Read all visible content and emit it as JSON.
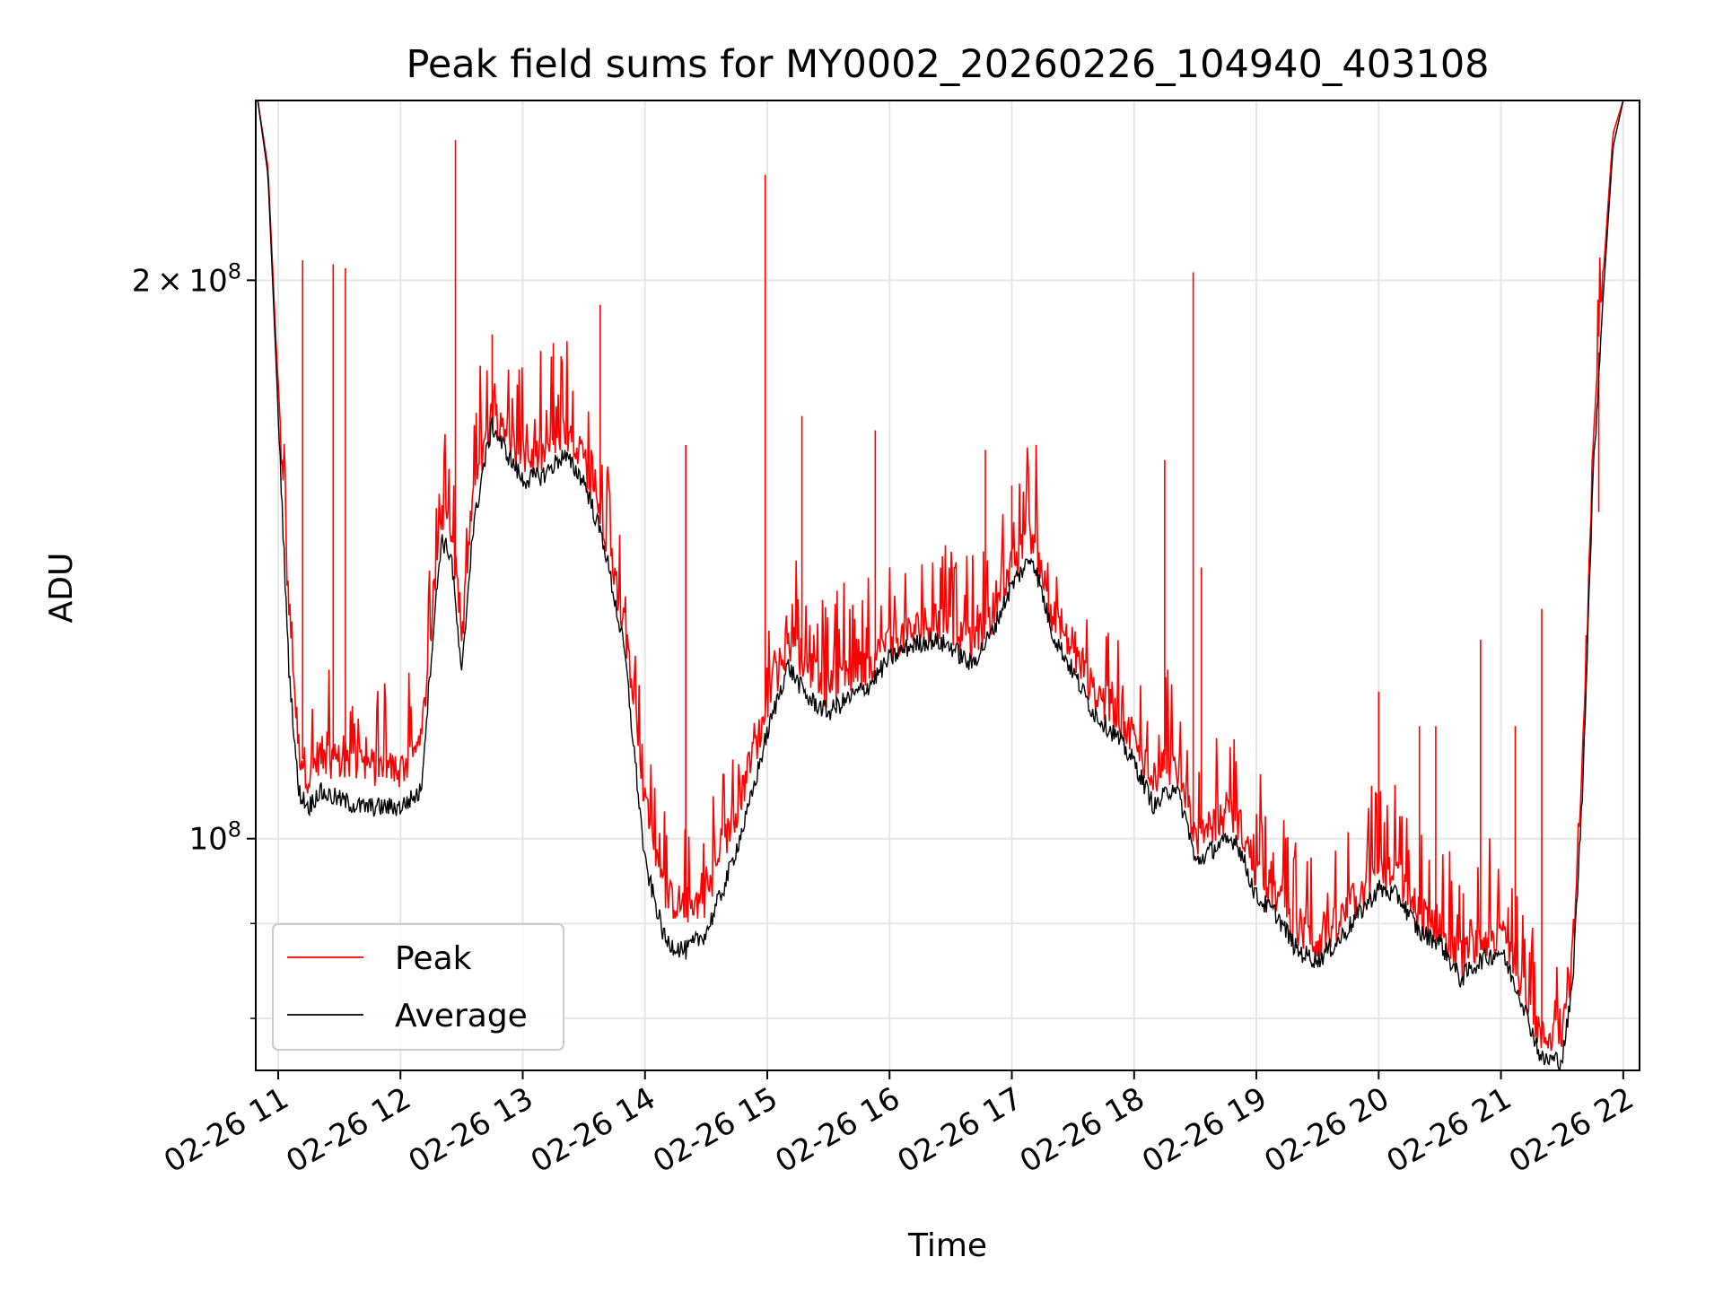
{
  "chart_data": {
    "type": "line",
    "title": "Peak field sums for MY0002_20260226_104940_403108",
    "xlabel": "Time",
    "ylabel": "ADU",
    "y_scale": "log",
    "ylim": [
      75000000,
      250000000
    ],
    "xlim": [
      "2026-02-26 10:49",
      "2026-02-26 22:08"
    ],
    "grid": true,
    "legend_position": "lower-left",
    "x_tick_labels": [
      "02-26 11",
      "02-26 12",
      "02-26 13",
      "02-26 14",
      "02-26 15",
      "02-26 16",
      "02-26 17",
      "02-26 18",
      "02-26 19",
      "02-26 20",
      "02-26 21",
      "02-26 22"
    ],
    "y_tick_labels": [
      "2 × 10^8",
      "10^8"
    ],
    "series": [
      {
        "name": "Peak",
        "color": "#ff0000",
        "x": [
          "2026-02-26 10:50",
          "2026-02-26 10:55",
          "2026-02-26 11:00",
          "2026-02-26 11:05",
          "2026-02-26 11:10",
          "2026-02-26 11:15",
          "2026-02-26 11:20",
          "2026-02-26 11:30",
          "2026-02-26 11:40",
          "2026-02-26 11:50",
          "2026-02-26 12:00",
          "2026-02-26 12:10",
          "2026-02-26 12:15",
          "2026-02-26 12:20",
          "2026-02-26 12:25",
          "2026-02-26 12:30",
          "2026-02-26 12:35",
          "2026-02-26 12:40",
          "2026-02-26 12:45",
          "2026-02-26 12:50",
          "2026-02-26 13:00",
          "2026-02-26 13:10",
          "2026-02-26 13:20",
          "2026-02-26 13:30",
          "2026-02-26 13:40",
          "2026-02-26 13:50",
          "2026-02-26 14:00",
          "2026-02-26 14:10",
          "2026-02-26 14:20",
          "2026-02-26 14:30",
          "2026-02-26 14:40",
          "2026-02-26 14:50",
          "2026-02-26 15:00",
          "2026-02-26 15:10",
          "2026-02-26 15:20",
          "2026-02-26 15:30",
          "2026-02-26 15:40",
          "2026-02-26 15:50",
          "2026-02-26 16:00",
          "2026-02-26 16:10",
          "2026-02-26 16:20",
          "2026-02-26 16:30",
          "2026-02-26 16:40",
          "2026-02-26 16:50",
          "2026-02-26 17:00",
          "2026-02-26 17:10",
          "2026-02-26 17:20",
          "2026-02-26 17:30",
          "2026-02-26 17:40",
          "2026-02-26 17:50",
          "2026-02-26 18:00",
          "2026-02-26 18:10",
          "2026-02-26 18:20",
          "2026-02-26 18:27",
          "2026-02-26 18:30",
          "2026-02-26 18:40",
          "2026-02-26 18:50",
          "2026-02-26 19:00",
          "2026-02-26 19:10",
          "2026-02-26 19:20",
          "2026-02-26 19:30",
          "2026-02-26 19:40",
          "2026-02-26 19:50",
          "2026-02-26 20:00",
          "2026-02-26 20:10",
          "2026-02-26 20:20",
          "2026-02-26 20:30",
          "2026-02-26 20:40",
          "2026-02-26 20:50",
          "2026-02-26 21:00",
          "2026-02-26 21:10",
          "2026-02-26 21:20",
          "2026-02-26 21:30",
          "2026-02-26 21:35",
          "2026-02-26 21:40",
          "2026-02-26 21:45",
          "2026-02-26 21:50",
          "2026-02-26 21:55",
          "2026-02-26 22:00"
        ],
        "values": [
          250000000,
          230000000,
          175000000,
          135000000,
          112000000,
          108000000,
          111000000,
          110000000,
          110000000,
          109000000,
          109000000,
          112000000,
          130000000,
          150000000,
          148000000,
          128000000,
          150000000,
          160000000,
          170000000,
          168000000,
          160000000,
          161000000,
          165000000,
          160000000,
          148000000,
          130000000,
          105000000,
          93000000,
          92000000,
          93000000,
          100000000,
          108000000,
          118000000,
          128000000,
          124000000,
          120000000,
          122000000,
          124000000,
          128000000,
          129000000,
          131000000,
          130000000,
          127000000,
          132000000,
          140000000,
          146000000,
          132000000,
          126000000,
          120000000,
          117000000,
          113000000,
          108000000,
          110000000,
          104000000,
          100000000,
          102000000,
          103000000,
          96000000,
          93000000,
          89000000,
          88000000,
          90000000,
          93000000,
          96000000,
          95000000,
          91000000,
          90000000,
          86000000,
          88000000,
          89000000,
          84000000,
          78000000,
          79000000,
          86000000,
          110000000,
          160000000,
          200000000,
          240000000,
          250000000
        ]
      },
      {
        "name": "Average",
        "color": "#000000",
        "x": [
          "2026-02-26 10:50",
          "2026-02-26 10:55",
          "2026-02-26 11:00",
          "2026-02-26 11:05",
          "2026-02-26 11:10",
          "2026-02-26 11:15",
          "2026-02-26 11:20",
          "2026-02-26 11:30",
          "2026-02-26 11:40",
          "2026-02-26 11:50",
          "2026-02-26 12:00",
          "2026-02-26 12:10",
          "2026-02-26 12:15",
          "2026-02-26 12:20",
          "2026-02-26 12:25",
          "2026-02-26 12:30",
          "2026-02-26 12:35",
          "2026-02-26 12:40",
          "2026-02-26 12:45",
          "2026-02-26 12:50",
          "2026-02-26 13:00",
          "2026-02-26 13:10",
          "2026-02-26 13:20",
          "2026-02-26 13:30",
          "2026-02-26 13:40",
          "2026-02-26 13:50",
          "2026-02-26 14:00",
          "2026-02-26 14:10",
          "2026-02-26 14:20",
          "2026-02-26 14:30",
          "2026-02-26 14:40",
          "2026-02-26 14:50",
          "2026-02-26 15:00",
          "2026-02-26 15:10",
          "2026-02-26 15:20",
          "2026-02-26 15:30",
          "2026-02-26 15:40",
          "2026-02-26 15:50",
          "2026-02-26 16:00",
          "2026-02-26 16:10",
          "2026-02-26 16:20",
          "2026-02-26 16:30",
          "2026-02-26 16:40",
          "2026-02-26 16:50",
          "2026-02-26 17:00",
          "2026-02-26 17:10",
          "2026-02-26 17:20",
          "2026-02-26 17:30",
          "2026-02-26 17:40",
          "2026-02-26 17:50",
          "2026-02-26 18:00",
          "2026-02-26 18:10",
          "2026-02-26 18:20",
          "2026-02-26 18:27",
          "2026-02-26 18:30",
          "2026-02-26 18:40",
          "2026-02-26 18:50",
          "2026-02-26 19:00",
          "2026-02-26 19:10",
          "2026-02-26 19:20",
          "2026-02-26 19:30",
          "2026-02-26 19:40",
          "2026-02-26 19:50",
          "2026-02-26 20:00",
          "2026-02-26 20:10",
          "2026-02-26 20:20",
          "2026-02-26 20:30",
          "2026-02-26 20:40",
          "2026-02-26 20:50",
          "2026-02-26 21:00",
          "2026-02-26 21:10",
          "2026-02-26 21:20",
          "2026-02-26 21:30",
          "2026-02-26 21:35",
          "2026-02-26 21:40",
          "2026-02-26 21:45",
          "2026-02-26 21:50",
          "2026-02-26 21:55",
          "2026-02-26 22:00"
        ],
        "values": [
          250000000,
          228000000,
          170000000,
          125000000,
          106000000,
          104000000,
          106000000,
          105000000,
          104000000,
          104000000,
          104000000,
          106000000,
          125000000,
          145000000,
          142000000,
          122000000,
          145000000,
          157000000,
          167000000,
          163000000,
          156000000,
          157000000,
          161000000,
          156000000,
          144000000,
          126000000,
          97000000,
          88000000,
          87000000,
          89000000,
          95000000,
          103000000,
          114000000,
          124000000,
          119000000,
          117000000,
          119000000,
          121000000,
          125000000,
          127000000,
          128000000,
          127000000,
          124000000,
          129000000,
          137000000,
          142000000,
          129000000,
          123000000,
          117000000,
          114000000,
          110000000,
          104000000,
          107000000,
          101000000,
          97000000,
          99000000,
          100000000,
          93000000,
          91000000,
          87000000,
          86000000,
          88000000,
          91000000,
          94000000,
          93000000,
          89000000,
          88000000,
          84000000,
          86000000,
          87000000,
          82000000,
          76000000,
          76000000,
          83000000,
          106000000,
          155000000,
          195000000,
          236000000,
          250000000
        ]
      }
    ],
    "spikes": {
      "Peak": [
        [
          "2026-02-26 11:12",
          205000000
        ],
        [
          "2026-02-26 11:27",
          204000000
        ],
        [
          "2026-02-26 11:33",
          203000000
        ],
        [
          "2026-02-26 12:27",
          238000000
        ],
        [
          "2026-02-26 12:45",
          187000000
        ],
        [
          "2026-02-26 13:15",
          185000000
        ],
        [
          "2026-02-26 13:38",
          194000000
        ],
        [
          "2026-02-26 14:20",
          163000000
        ],
        [
          "2026-02-26 14:59",
          228000000
        ],
        [
          "2026-02-26 15:17",
          169000000
        ],
        [
          "2026-02-26 15:53",
          166000000
        ],
        [
          "2026-02-26 16:47",
          162000000
        ],
        [
          "2026-02-26 17:00",
          155000000
        ],
        [
          "2026-02-26 18:15",
          160000000
        ],
        [
          "2026-02-26 18:29",
          202000000
        ],
        [
          "2026-02-26 18:33",
          140000000
        ],
        [
          "2026-02-26 20:00",
          120000000
        ],
        [
          "2026-02-26 20:20",
          115000000
        ],
        [
          "2026-02-26 20:28",
          115000000
        ],
        [
          "2026-02-26 20:50",
          128000000
        ],
        [
          "2026-02-26 21:07",
          115000000
        ],
        [
          "2026-02-26 21:20",
          133000000
        ],
        [
          "2026-02-26 21:40",
          110000000
        ],
        [
          "2026-02-26 21:48",
          150000000
        ]
      ]
    }
  }
}
